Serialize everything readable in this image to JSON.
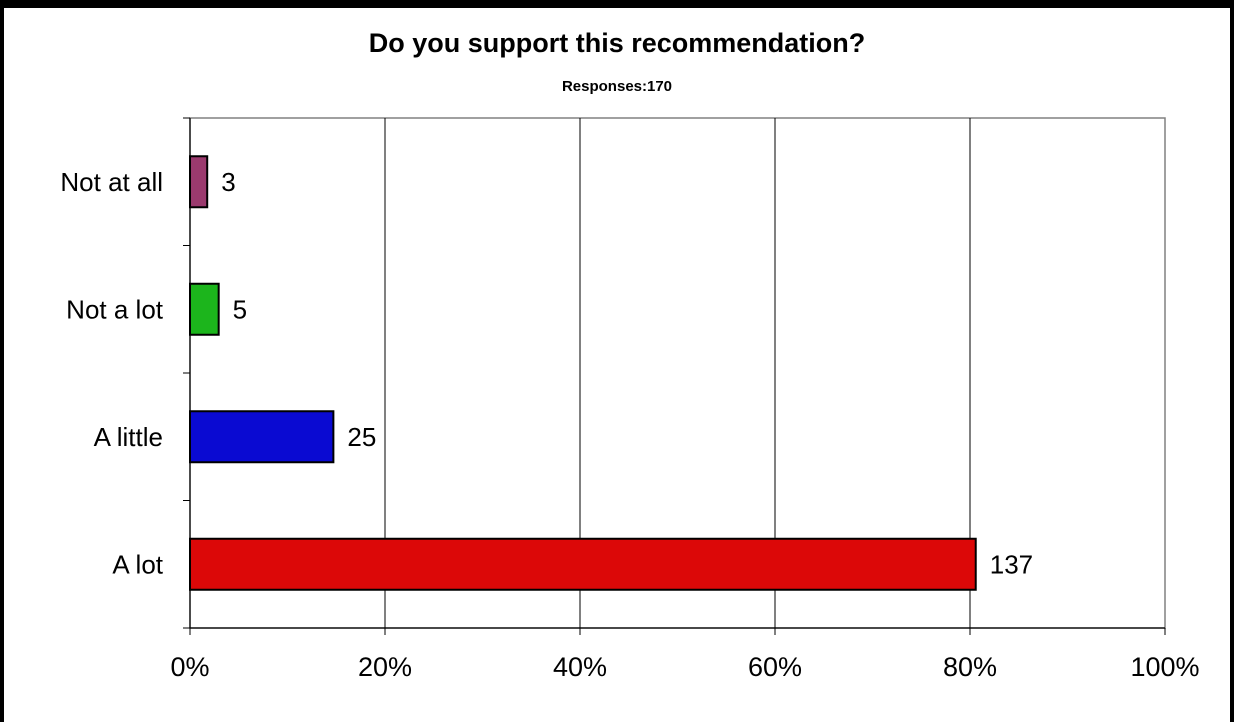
{
  "chart_data": {
    "type": "bar",
    "orientation": "horizontal",
    "title": "Do you support this recommendation?",
    "subtitle": "Responses:170",
    "xlabel": "",
    "ylabel": "",
    "categories": [
      "Not at all",
      "Not a lot",
      "A little",
      "A lot"
    ],
    "values": [
      3,
      5,
      25,
      137
    ],
    "percent_values": [
      1.76,
      2.94,
      14.71,
      80.59
    ],
    "total": 170,
    "data_labels": [
      "3",
      "5",
      "25",
      "137"
    ],
    "colors": [
      "#9b3a6e",
      "#1cb51c",
      "#0a0ad2",
      "#dc0808"
    ],
    "xlim": [
      0,
      100
    ],
    "x_ticks": [
      "0%",
      "20%",
      "40%",
      "60%",
      "80%",
      "100%"
    ],
    "x_tick_values": [
      0,
      20,
      40,
      60,
      80,
      100
    ],
    "grid": "vertical",
    "legend": "none"
  }
}
